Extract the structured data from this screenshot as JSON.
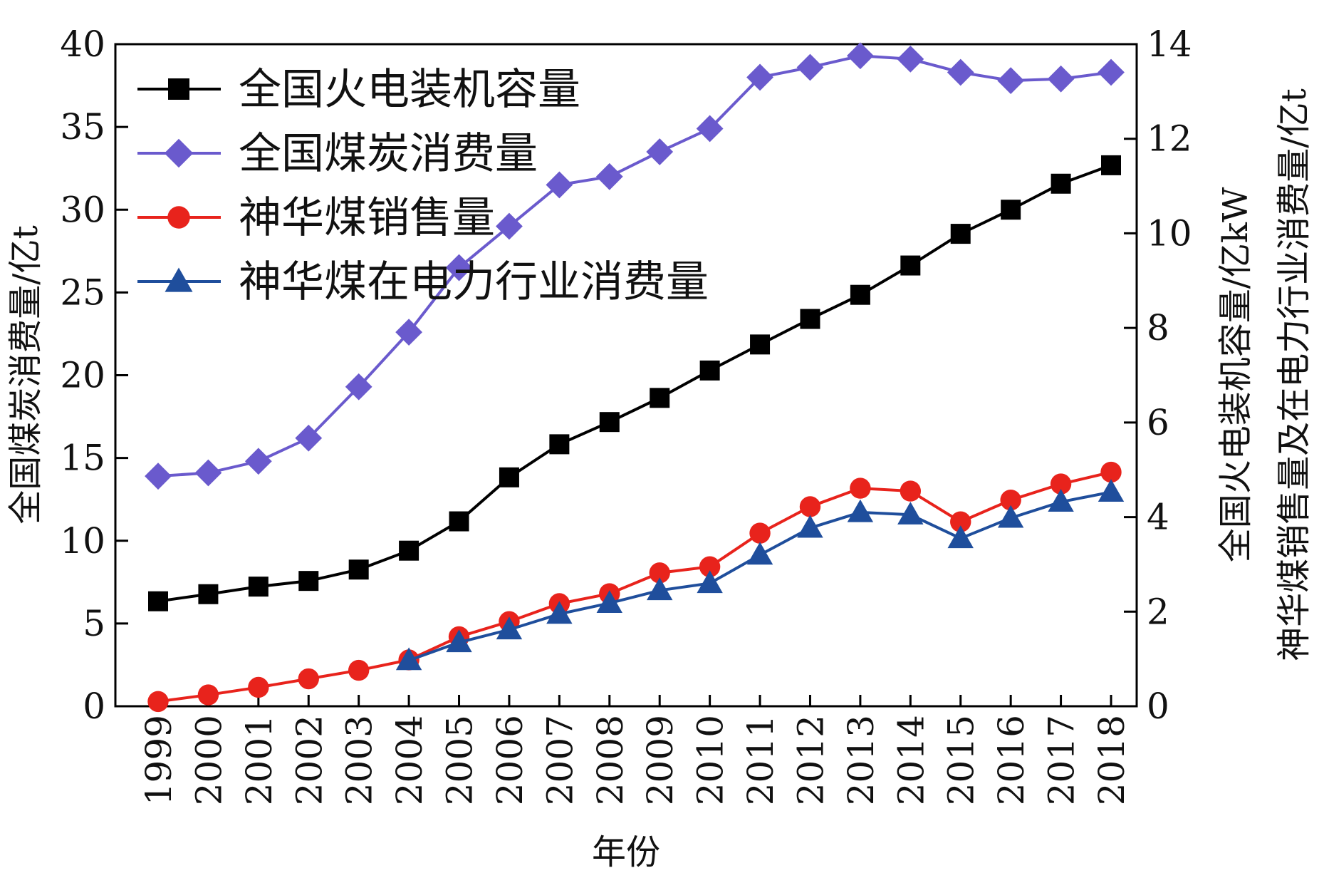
{
  "chart_data": {
    "type": "line",
    "xlabel": "年份",
    "ylabel_left": "全国煤炭消费量/亿t",
    "ylabel_right_line1": "全国火电装机容量/亿kW",
    "ylabel_right_line2": "神华煤销售量及在电力行业消费量/亿t",
    "categories": [
      "1999",
      "2000",
      "2001",
      "2002",
      "2003",
      "2004",
      "2005",
      "2006",
      "2007",
      "2008",
      "2009",
      "2010",
      "2011",
      "2012",
      "2013",
      "2014",
      "2015",
      "2016",
      "2017",
      "2018"
    ],
    "ylim_left": [
      0,
      40
    ],
    "ylim_right": [
      0,
      14
    ],
    "yticks_left": [
      "0",
      "5",
      "10",
      "15",
      "20",
      "25",
      "30",
      "35",
      "40"
    ],
    "yticks_right": [
      "0",
      "2",
      "4",
      "6",
      "8",
      "10",
      "12",
      "14"
    ],
    "grid": false,
    "legend_position": "top-left",
    "series": [
      {
        "name": "全国火电装机容量",
        "axis": "right",
        "marker": "square",
        "color": "#000000",
        "values": [
          2.22,
          2.37,
          2.53,
          2.65,
          2.89,
          3.29,
          3.91,
          4.84,
          5.54,
          6.01,
          6.52,
          7.1,
          7.65,
          8.19,
          8.7,
          9.32,
          9.99,
          10.5,
          11.05,
          11.44
        ]
      },
      {
        "name": "全国煤炭消费量",
        "axis": "left",
        "marker": "diamond",
        "color": "#6a5acd",
        "values": [
          13.9,
          14.1,
          14.8,
          16.2,
          19.3,
          22.6,
          26.5,
          29.0,
          31.5,
          32.0,
          33.5,
          34.9,
          38.0,
          38.6,
          39.3,
          39.1,
          38.3,
          37.8,
          37.9,
          38.3
        ]
      },
      {
        "name": "神华煤销售量",
        "axis": "right",
        "marker": "circle",
        "color": "#e8231c",
        "values": [
          0.1,
          0.24,
          0.4,
          0.58,
          0.76,
          0.98,
          1.47,
          1.79,
          2.17,
          2.38,
          2.82,
          2.95,
          3.66,
          4.22,
          4.61,
          4.55,
          3.9,
          4.36,
          4.7,
          4.95
        ]
      },
      {
        "name": "神华煤在电力行业消费量",
        "axis": "right",
        "marker": "triangle",
        "color": "#1f4e9c",
        "values": [
          null,
          null,
          null,
          null,
          null,
          0.97,
          1.35,
          1.62,
          1.95,
          2.18,
          2.45,
          2.6,
          3.2,
          3.77,
          4.1,
          4.05,
          3.55,
          3.98,
          4.32,
          4.53
        ]
      }
    ]
  }
}
